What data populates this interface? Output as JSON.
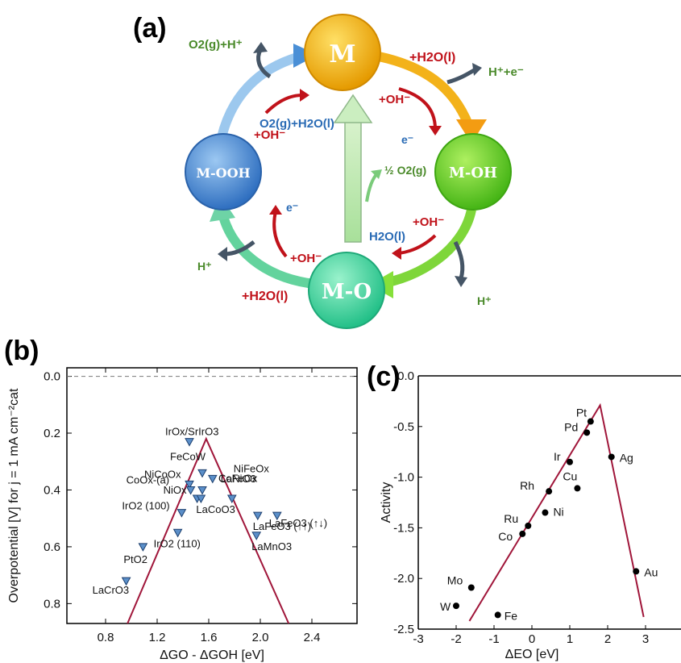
{
  "panel_a": {
    "label": "(a)",
    "nodes": {
      "m": "M",
      "m_oh": "M-OH",
      "m_o": "M-O",
      "m_ooh": "M-OOH"
    },
    "species": {
      "o2_h_top": "O2(g)+H⁺",
      "h2o_top": "+H2O(l)",
      "h_e": "H⁺+e⁻",
      "oh_top": "+OH⁻",
      "e_top": "e⁻",
      "o2_h2o": "O2(g)+H2O(l)",
      "oh_left": "+OH⁻",
      "half_o2": "½ O2(g)",
      "oh_right": "+OH⁻",
      "h2o_right": "H2O(l)",
      "e_left": "e⁻",
      "h_left": "H⁺",
      "oh_bottom": "+OH⁻",
      "h2o_bottom": "+H2O(l)",
      "h_right": "H⁺"
    },
    "colors": {
      "m": "#f7b500",
      "m_oh": "#6cd224",
      "m_o": "#3fd8a0",
      "m_ooh": "#4a8fd6"
    }
  },
  "chart_data": [
    {
      "panel": "(b)",
      "type": "scatter",
      "xlabel": "ΔGO - ΔGOH [eV]",
      "ylabel": "Overpotential [V] for j = 1 mA cm⁻²cat",
      "xlim": [
        0.5,
        2.75
      ],
      "ylim": [
        0.87,
        -0.03
      ],
      "y_inverted": true,
      "xticks": [
        "0.8",
        "1.2",
        "1.6",
        "2.0",
        "2.4"
      ],
      "yticks": [
        "0.0",
        "0.2",
        "0.4",
        "0.6",
        "0.8"
      ],
      "reference_line": 0.0,
      "volcano": [
        [
          0.97,
          0.87
        ],
        [
          1.58,
          0.22
        ],
        [
          2.22,
          0.87
        ]
      ],
      "points": [
        {
          "label": "IrOx/SrIrO3",
          "x": 1.45,
          "y": 0.23
        },
        {
          "label": "FeCoW",
          "x": 1.55,
          "y": 0.34
        },
        {
          "label": "NiFeOx",
          "x": 1.63,
          "y": 0.36
        },
        {
          "label": "NiCoOx",
          "x": 1.45,
          "y": 0.38
        },
        {
          "label": "CoOx-(a)",
          "x": 1.46,
          "y": 0.4
        },
        {
          "label": "CoFeOx",
          "x": 1.55,
          "y": 0.4
        },
        {
          "label": "LaNiO3",
          "x": 1.78,
          "y": 0.43
        },
        {
          "label": "NiOx",
          "x": 1.51,
          "y": 0.43
        },
        {
          "label": "LaCoO3",
          "x": 1.54,
          "y": 0.43
        },
        {
          "label": "IrO2 (100)",
          "x": 1.39,
          "y": 0.48
        },
        {
          "label": "LaFeO3 (↑↓)",
          "x": 2.13,
          "y": 0.49
        },
        {
          "label": "LaFeO3 (↑↑)",
          "x": 1.98,
          "y": 0.49
        },
        {
          "label": "IrO2 (110)",
          "x": 1.36,
          "y": 0.55
        },
        {
          "label": "LaMnO3",
          "x": 1.97,
          "y": 0.56
        },
        {
          "label": "PtO2",
          "x": 1.09,
          "y": 0.6
        },
        {
          "label": "LaCrO3",
          "x": 0.96,
          "y": 0.72
        }
      ]
    },
    {
      "panel": "(c)",
      "type": "scatter",
      "xlabel": "ΔEO [eV]",
      "ylabel": "Activity",
      "xlim": [
        -3,
        4
      ],
      "ylim": [
        -2.5,
        0
      ],
      "xticks": [
        "-3",
        "-2",
        "-1",
        "0",
        "1",
        "2",
        "3"
      ],
      "yticks": [
        "0.0",
        "-0.5",
        "-1.0",
        "-1.5",
        "-2.0",
        "-2.5"
      ],
      "volcano": [
        [
          -1.65,
          -2.42
        ],
        [
          1.8,
          -0.29
        ],
        [
          2.95,
          -2.38
        ]
      ],
      "points": [
        {
          "label": "Pt",
          "x": 1.55,
          "y": -0.45
        },
        {
          "label": "Pd",
          "x": 1.45,
          "y": -0.56
        },
        {
          "label": "Ag",
          "x": 2.1,
          "y": -0.8
        },
        {
          "label": "Ir",
          "x": 1.0,
          "y": -0.85
        },
        {
          "label": "Cu",
          "x": 1.2,
          "y": -1.11
        },
        {
          "label": "Rh",
          "x": 0.45,
          "y": -1.14
        },
        {
          "label": "Ni",
          "x": 0.35,
          "y": -1.35
        },
        {
          "label": "Ru",
          "x": -0.1,
          "y": -1.48
        },
        {
          "label": "Co",
          "x": -0.25,
          "y": -1.56
        },
        {
          "label": "Au",
          "x": 2.75,
          "y": -1.93
        },
        {
          "label": "Mo",
          "x": -1.6,
          "y": -2.09
        },
        {
          "label": "W",
          "x": -2.0,
          "y": -2.27
        },
        {
          "label": "Fe",
          "x": -0.9,
          "y": -2.36
        }
      ]
    }
  ]
}
